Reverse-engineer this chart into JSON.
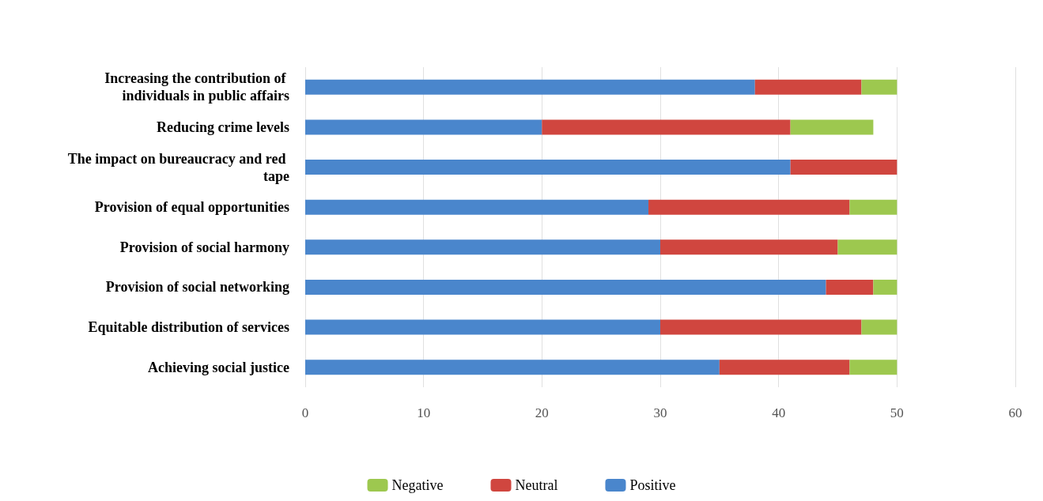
{
  "chart_data": {
    "type": "bar",
    "orientation": "horizontal",
    "stacked": true,
    "categories": [
      "Increasing the contribution of individuals in public affairs",
      "Reducing crime levels",
      "The impact on bureaucracy and red tape",
      "Provision of equal opportunities",
      "Provision of social harmony",
      "Provision of social networking",
      "Equitable distribution of services",
      "Achieving social justice"
    ],
    "series": [
      {
        "name": "Positive",
        "color": "#4a86cc",
        "values": [
          38,
          20,
          41,
          29,
          30,
          44,
          30,
          35
        ]
      },
      {
        "name": "Neutral",
        "color": "#d0463f",
        "values": [
          9,
          21,
          9,
          17,
          15,
          4,
          17,
          11
        ]
      },
      {
        "name": "Negative",
        "color": "#9dc84f",
        "values": [
          3,
          7,
          0,
          4,
          5,
          2,
          3,
          4
        ]
      }
    ],
    "xlim": [
      0,
      60
    ],
    "xticks": [
      0,
      10,
      20,
      30,
      40,
      50,
      60
    ],
    "grid": "x",
    "legend": "bottom"
  }
}
